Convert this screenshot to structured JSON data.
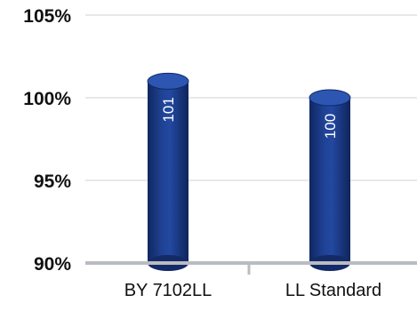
{
  "chart_data": {
    "type": "bar",
    "categories": [
      "BY 7102LL",
      "LL Standard"
    ],
    "values": [
      101,
      100
    ],
    "data_labels": [
      "101",
      "100"
    ],
    "y_ticks": [
      90,
      95,
      100,
      105
    ],
    "y_tick_labels": [
      "90%",
      "95%",
      "100%",
      "105%"
    ],
    "ylim": [
      90,
      105
    ],
    "grid": true,
    "legend": "none",
    "title": "",
    "xlabel": "",
    "ylabel": "",
    "colors": {
      "bar_body": "#1e3f8f",
      "bar_top": "#2d56b3",
      "bar_edge": "#122a66",
      "gridline": "#d9d9d9",
      "baseline": "#b9bcc1",
      "text": "#111111",
      "label": "#ffffff"
    }
  }
}
